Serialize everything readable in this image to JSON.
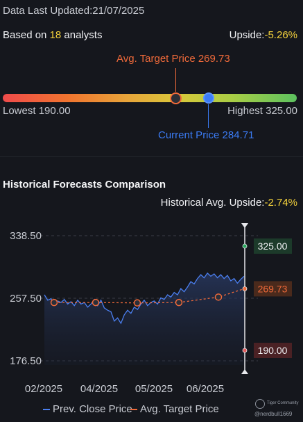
{
  "header": {
    "updated": "Data Last Updated:21/07/2025",
    "based_prefix": "Based on ",
    "analyst_count": "18",
    "based_suffix": " analysts",
    "upside_label": "Upside:",
    "upside_value": "-5.26%"
  },
  "gauge": {
    "target_label": "Avg. Target Price 269.73",
    "current_label": "Current Price 284.71",
    "lowest_label": "Lowest 190.00",
    "highest_label": "Highest 325.00",
    "low": 190.0,
    "high": 325.0,
    "target": 269.73,
    "current": 284.71
  },
  "historical": {
    "title": "Historical Forecasts Comparison",
    "upside_label": "Historical Avg. Upside:",
    "upside_value": "-2.74%"
  },
  "chart_data": {
    "type": "line",
    "yticks": [
      "338.50",
      "257.50",
      "176.50"
    ],
    "ylim": [
      176.5,
      338.5
    ],
    "xticks": [
      "02/2025",
      "04/2025",
      "05/2025",
      "06/2025"
    ],
    "series": [
      {
        "name": "Prev. Close Price",
        "color": "#4b7ff0",
        "values": [
          262,
          255,
          257,
          250,
          254,
          252,
          256,
          250,
          253,
          248,
          255,
          250,
          252,
          246,
          250,
          256,
          248,
          255,
          245,
          242,
          240,
          228,
          232,
          225,
          236,
          242,
          238,
          246,
          243,
          250,
          255,
          248,
          252,
          254,
          250,
          258,
          256,
          262,
          259,
          265,
          262,
          270,
          266,
          272,
          279,
          276,
          283,
          288,
          284,
          290,
          286,
          289,
          284,
          288,
          283,
          287,
          280,
          283,
          277,
          282,
          286
        ]
      },
      {
        "name": "Avg. Target Price",
        "color": "#f06a3a",
        "points": [
          252,
          252,
          251.5,
          251.5,
          252,
          254,
          259,
          269.73
        ]
      }
    ],
    "badges": [
      {
        "label": "325.00",
        "value": 325.0,
        "color": "#26a65b",
        "bg": "#1c3a2a"
      },
      {
        "label": "269.73",
        "value": 269.73,
        "color": "#f06a3a",
        "bg": "#4a2a1c"
      },
      {
        "label": "190.00",
        "value": 190.0,
        "color": "#e25a5a",
        "bg": "#4a2124"
      }
    ]
  },
  "legend": {
    "prev": "Prev. Close Price",
    "target": "Avg. Target Price"
  },
  "watermark": {
    "brand": "Tiger Community",
    "user": "@nerdbull1669"
  }
}
